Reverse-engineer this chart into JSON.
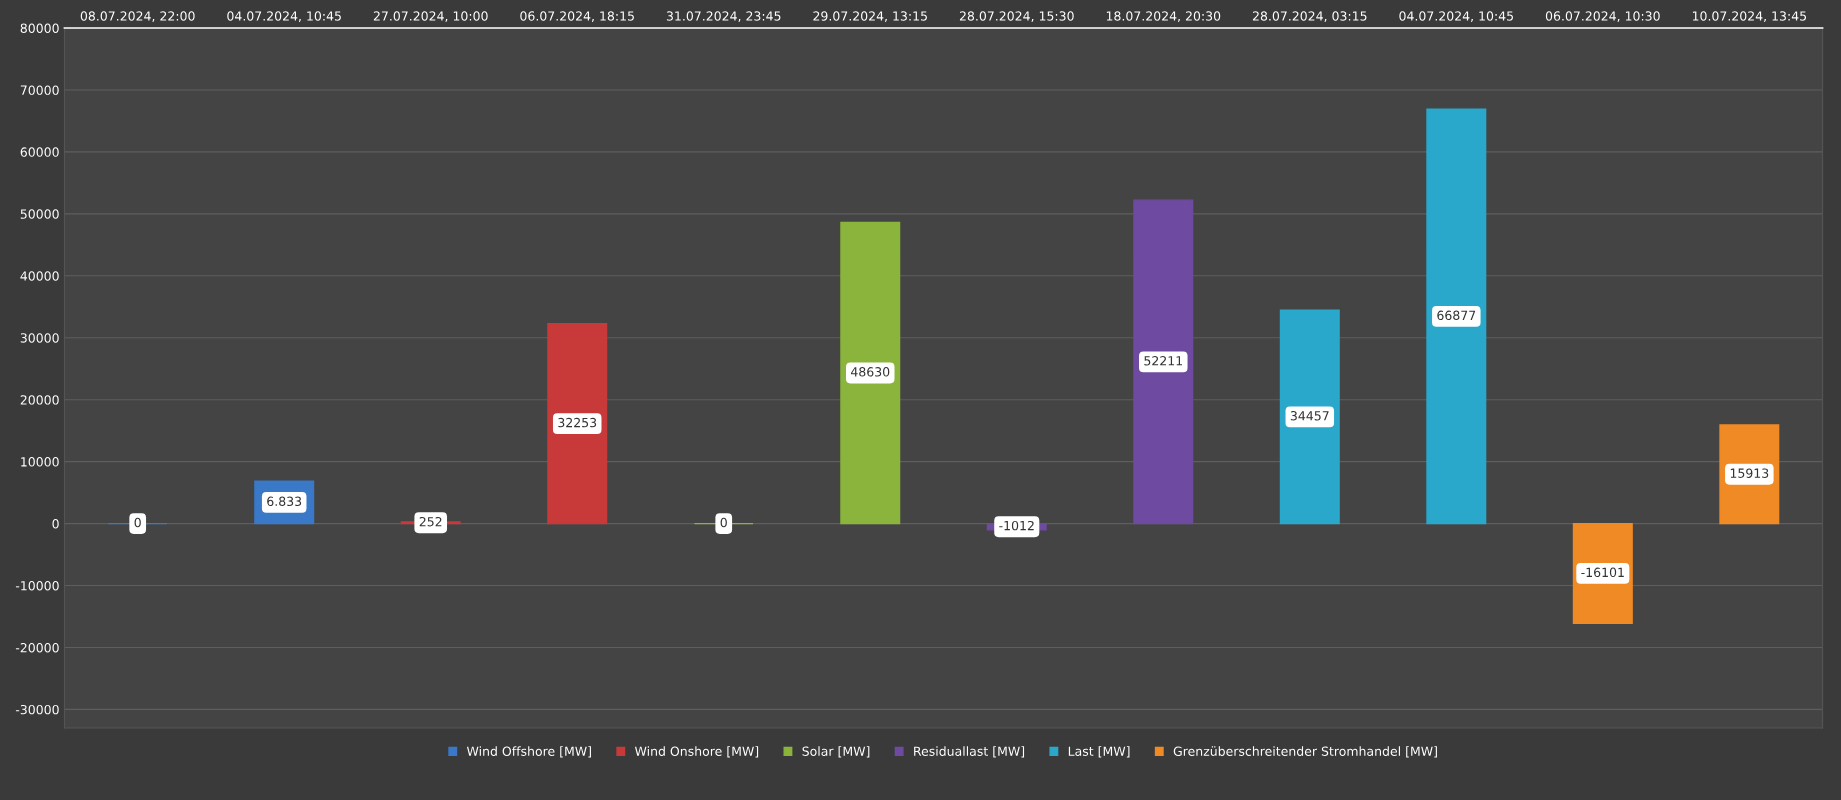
{
  "chart_data": {
    "type": "bar",
    "categories": [
      "08.07.2024, 22:00",
      "04.07.2024, 10:45",
      "27.07.2024, 10:00",
      "06.07.2024, 18:15",
      "31.07.2024, 23:45",
      "29.07.2024, 13:15",
      "28.07.2024, 15:30",
      "18.07.2024, 20:30",
      "28.07.2024, 03:15",
      "04.07.2024, 10:45",
      "06.07.2024, 10:30",
      "10.07.2024, 13:45"
    ],
    "series": [
      {
        "name": "Wind Offshore [MW]",
        "color": "#3a78c8",
        "values": [
          0,
          6833,
          null,
          null,
          null,
          null,
          null,
          null,
          null,
          null,
          null,
          null
        ],
        "value_labels": [
          "0",
          "6.833",
          null,
          null,
          null,
          null,
          null,
          null,
          null,
          null,
          null,
          null
        ]
      },
      {
        "name": "Wind Onshore [MW]",
        "color": "#c83a3a",
        "values": [
          null,
          null,
          252,
          32253,
          null,
          null,
          null,
          null,
          null,
          null,
          null,
          null
        ],
        "value_labels": [
          null,
          null,
          "252",
          "32253",
          null,
          null,
          null,
          null,
          null,
          null,
          null,
          null
        ]
      },
      {
        "name": "Solar [MW]",
        "color": "#8ab43c",
        "values": [
          null,
          null,
          null,
          null,
          0,
          48630,
          null,
          null,
          null,
          null,
          null,
          null
        ],
        "value_labels": [
          null,
          null,
          null,
          null,
          "0",
          "48630",
          null,
          null,
          null,
          null,
          null,
          null
        ]
      },
      {
        "name": "Residuallast [MW]",
        "color": "#6e4aa0",
        "values": [
          null,
          null,
          null,
          null,
          null,
          null,
          -1012,
          52211,
          null,
          null,
          null,
          null
        ],
        "value_labels": [
          null,
          null,
          null,
          null,
          null,
          null,
          "-1012",
          "52211",
          null,
          null,
          null,
          null
        ]
      },
      {
        "name": "Last [MW]",
        "color": "#2aa8cc",
        "values": [
          null,
          null,
          null,
          null,
          null,
          null,
          null,
          null,
          34457,
          66877,
          null,
          null
        ],
        "value_labels": [
          null,
          null,
          null,
          null,
          null,
          null,
          null,
          null,
          "34457",
          "66877",
          null,
          null
        ]
      },
      {
        "name": "Grenzüberschreitender Stromhandel [MW]",
        "color": "#f08a24",
        "values": [
          null,
          null,
          null,
          null,
          null,
          null,
          null,
          null,
          null,
          null,
          -16101,
          15913
        ],
        "value_labels": [
          null,
          null,
          null,
          null,
          null,
          null,
          null,
          null,
          null,
          null,
          "-16101",
          "15913"
        ]
      }
    ],
    "ylim": [
      -33000,
      80000
    ],
    "yticks": [
      -30000,
      -20000,
      -10000,
      0,
      10000,
      20000,
      30000,
      40000,
      50000,
      60000,
      70000,
      80000
    ],
    "grid": "y",
    "legend": "bottom"
  }
}
